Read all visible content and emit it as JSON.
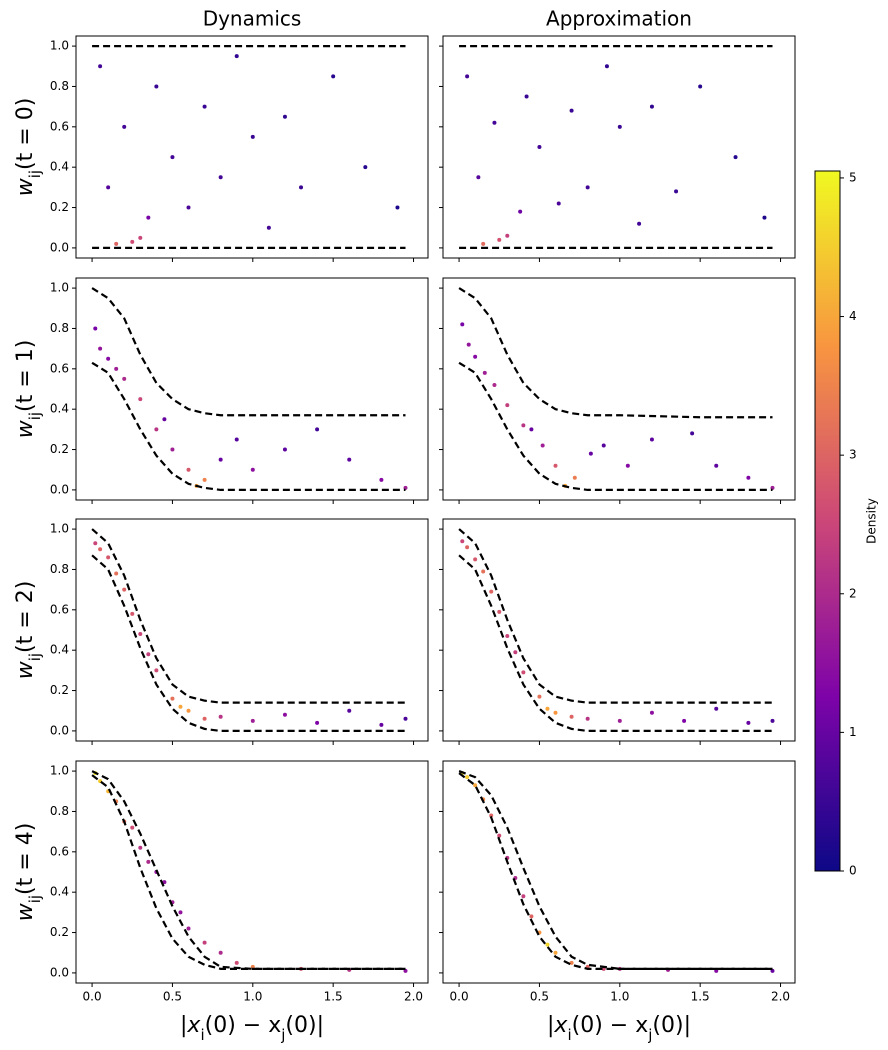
{
  "chart_data": {
    "type": "scatter",
    "columns": [
      "Dynamics",
      "Approximation"
    ],
    "rows": [
      [
        "w",
        "ij",
        "(t = 0)"
      ],
      [
        "w",
        "ij",
        "(t = 1)"
      ],
      [
        "w",
        "ij",
        "(t = 2)"
      ],
      [
        "w",
        "ij",
        "(t = 4)"
      ]
    ],
    "xlabel": [
      "|x",
      "i",
      "(0) − x",
      "j",
      "(0)|"
    ],
    "xlim": [
      -0.1,
      2.09
    ],
    "ylim": [
      -0.05,
      1.05
    ],
    "xticks": [
      {
        "value": 0,
        "label": "0.0"
      },
      {
        "value": 0.5,
        "label": "0.5"
      },
      {
        "value": 1,
        "label": "1.0"
      },
      {
        "value": 1.5,
        "label": "1.5"
      },
      {
        "value": 2,
        "label": "2.0"
      }
    ],
    "yticks": [
      {
        "value": 0,
        "label": "0.0"
      },
      {
        "value": 0.2,
        "label": "0.2"
      },
      {
        "value": 0.4,
        "label": "0.4"
      },
      {
        "value": 0.6,
        "label": "0.6"
      },
      {
        "value": 0.8,
        "label": "0.8"
      },
      {
        "value": 1,
        "label": "1.0"
      }
    ],
    "colormap": "plasma",
    "colorbar": {
      "label": "Density",
      "lim": [
        0,
        5.05
      ],
      "ticks": [
        0,
        1,
        2,
        3,
        4,
        5
      ]
    },
    "curve_x": [
      0,
      0.1,
      0.2,
      0.3,
      0.4,
      0.5,
      0.6,
      0.7,
      0.8,
      1.0,
      1.5,
      1.95
    ],
    "panels": [
      {
        "curves": [
          [
            1,
            1,
            1,
            1,
            1,
            1,
            1,
            1,
            1,
            1,
            1,
            1
          ],
          [
            0,
            0,
            0,
            0,
            0,
            0,
            0,
            0,
            0,
            0,
            0,
            0
          ]
        ],
        "x": [
          0.05,
          0.1,
          0.2,
          0.3,
          0.4,
          0.5,
          0.6,
          0.7,
          0.8,
          0.9,
          1.0,
          1.1,
          1.2,
          1.3,
          1.5,
          1.7,
          1.9,
          0.15,
          0.25,
          0.35
        ],
        "y": [
          0.9,
          0.3,
          0.6,
          0.05,
          0.8,
          0.45,
          0.2,
          0.7,
          0.35,
          0.95,
          0.55,
          0.1,
          0.65,
          0.3,
          0.85,
          0.4,
          0.2,
          0.02,
          0.03,
          0.15
        ],
        "density": [
          0.6,
          0.8,
          0.6,
          2.5,
          0.5,
          0.6,
          0.7,
          0.5,
          0.6,
          0.4,
          0.5,
          0.6,
          0.4,
          0.5,
          0.3,
          0.3,
          0.2,
          3.0,
          2.6,
          1.2
        ]
      },
      {
        "curves": [
          [
            1,
            1,
            1,
            1,
            1,
            1,
            1,
            1,
            1,
            1,
            1,
            1
          ],
          [
            0,
            0,
            0,
            0,
            0,
            0,
            0,
            0,
            0,
            0,
            0,
            0
          ]
        ],
        "x": [
          0.05,
          0.12,
          0.22,
          0.3,
          0.42,
          0.5,
          0.62,
          0.7,
          0.8,
          0.92,
          1.0,
          1.12,
          1.2,
          1.35,
          1.5,
          1.72,
          1.9,
          0.15,
          0.25,
          0.38
        ],
        "y": [
          0.85,
          0.35,
          0.62,
          0.06,
          0.75,
          0.5,
          0.22,
          0.68,
          0.3,
          0.9,
          0.6,
          0.12,
          0.7,
          0.28,
          0.8,
          0.45,
          0.15,
          0.02,
          0.04,
          0.18
        ],
        "density": [
          0.6,
          0.8,
          0.6,
          2.4,
          0.5,
          0.6,
          0.7,
          0.5,
          0.6,
          0.4,
          0.5,
          0.6,
          0.4,
          0.5,
          0.3,
          0.3,
          0.2,
          3.1,
          2.7,
          1.1
        ]
      },
      {
        "curves": [
          [
            1,
            0.95,
            0.85,
            0.67,
            0.53,
            0.45,
            0.4,
            0.38,
            0.37,
            0.37,
            0.37,
            0.37
          ],
          [
            0.63,
            0.58,
            0.45,
            0.3,
            0.17,
            0.08,
            0.03,
            0.01,
            0,
            0,
            0,
            0
          ]
        ],
        "x": [
          0.02,
          0.05,
          0.1,
          0.15,
          0.2,
          0.3,
          0.4,
          0.5,
          0.6,
          0.7,
          0.8,
          0.9,
          1.0,
          1.2,
          1.4,
          1.6,
          1.8,
          1.95,
          0.45,
          0.65
        ],
        "y": [
          0.8,
          0.7,
          0.65,
          0.6,
          0.55,
          0.45,
          0.3,
          0.2,
          0.1,
          0.05,
          0.15,
          0.25,
          0.1,
          0.2,
          0.3,
          0.15,
          0.05,
          0.01,
          0.35,
          0.02
        ],
        "density": [
          1.2,
          1.6,
          1.4,
          1.8,
          2,
          2.5,
          2.2,
          1.8,
          2.8,
          3.5,
          1.0,
          0.8,
          1.5,
          0.9,
          0.6,
          0.9,
          1.4,
          1.8,
          1.0,
          4.0
        ]
      },
      {
        "curves": [
          [
            1,
            0.95,
            0.85,
            0.67,
            0.53,
            0.45,
            0.4,
            0.38,
            0.37,
            0.37,
            0.36,
            0.36
          ],
          [
            0.63,
            0.58,
            0.45,
            0.3,
            0.17,
            0.08,
            0.03,
            0.01,
            0,
            0,
            0,
            0
          ]
        ],
        "x": [
          0.02,
          0.06,
          0.1,
          0.16,
          0.22,
          0.3,
          0.4,
          0.52,
          0.6,
          0.72,
          0.82,
          0.9,
          1.05,
          1.2,
          1.45,
          1.6,
          1.8,
          1.95,
          0.45,
          0.66
        ],
        "y": [
          0.82,
          0.72,
          0.66,
          0.58,
          0.52,
          0.42,
          0.32,
          0.22,
          0.12,
          0.06,
          0.18,
          0.22,
          0.12,
          0.25,
          0.28,
          0.12,
          0.06,
          0.01,
          0.3,
          0.02
        ],
        "density": [
          1.2,
          1.6,
          1.4,
          1.8,
          2,
          2.4,
          2.2,
          1.8,
          2.8,
          3.4,
          1.0,
          0.8,
          1.4,
          0.9,
          0.6,
          0.9,
          1.3,
          1.8,
          1.0,
          4.0
        ]
      },
      {
        "curves": [
          [
            1,
            0.93,
            0.77,
            0.55,
            0.36,
            0.23,
            0.17,
            0.15,
            0.14,
            0.14,
            0.14,
            0.14
          ],
          [
            0.87,
            0.8,
            0.62,
            0.41,
            0.23,
            0.11,
            0.04,
            0.01,
            0,
            0,
            0,
            0
          ]
        ],
        "x": [
          0.02,
          0.05,
          0.1,
          0.15,
          0.2,
          0.25,
          0.3,
          0.35,
          0.4,
          0.5,
          0.6,
          0.7,
          0.8,
          1.0,
          1.2,
          1.4,
          1.6,
          1.8,
          1.95,
          0.55
        ],
        "y": [
          0.93,
          0.9,
          0.86,
          0.78,
          0.7,
          0.58,
          0.48,
          0.38,
          0.3,
          0.16,
          0.1,
          0.06,
          0.07,
          0.05,
          0.08,
          0.04,
          0.1,
          0.03,
          0.06,
          0.12
        ],
        "density": [
          2.5,
          3,
          2.8,
          3.2,
          3.0,
          2.8,
          2.5,
          2.4,
          2.6,
          3.2,
          3.8,
          3.0,
          2.2,
          1.8,
          1.5,
          1.3,
          0.8,
          1.0,
          0.7,
          4.0
        ]
      },
      {
        "curves": [
          [
            1,
            0.93,
            0.77,
            0.55,
            0.36,
            0.23,
            0.17,
            0.15,
            0.14,
            0.14,
            0.14,
            0.14
          ],
          [
            0.87,
            0.8,
            0.62,
            0.41,
            0.23,
            0.11,
            0.04,
            0.01,
            0,
            0,
            0,
            0
          ]
        ],
        "x": [
          0.02,
          0.05,
          0.1,
          0.15,
          0.2,
          0.25,
          0.3,
          0.35,
          0.4,
          0.5,
          0.6,
          0.7,
          0.8,
          1.0,
          1.2,
          1.4,
          1.6,
          1.8,
          1.95,
          0.55
        ],
        "y": [
          0.94,
          0.91,
          0.85,
          0.79,
          0.69,
          0.59,
          0.47,
          0.39,
          0.29,
          0.17,
          0.09,
          0.07,
          0.06,
          0.05,
          0.09,
          0.05,
          0.11,
          0.04,
          0.05,
          0.11
        ],
        "density": [
          2.5,
          3,
          2.8,
          3.2,
          3.0,
          2.8,
          2.5,
          2.4,
          2.6,
          3.2,
          3.8,
          3.0,
          2.2,
          1.8,
          1.5,
          1.3,
          0.8,
          1.0,
          0.7,
          4.0
        ]
      },
      {
        "curves": [
          [
            1,
            0.96,
            0.85,
            0.69,
            0.51,
            0.33,
            0.18,
            0.08,
            0.03,
            0.02,
            0.02,
            0.02
          ],
          [
            0.98,
            0.92,
            0.75,
            0.52,
            0.32,
            0.17,
            0.08,
            0.04,
            0.02,
            0.02,
            0.02,
            0.02
          ]
        ],
        "x": [
          0.02,
          0.05,
          0.1,
          0.15,
          0.2,
          0.25,
          0.3,
          0.35,
          0.4,
          0.45,
          0.5,
          0.55,
          0.6,
          0.7,
          0.8,
          0.9,
          1.0,
          1.3,
          1.6,
          1.95
        ],
        "y": [
          0.99,
          0.95,
          0.9,
          0.85,
          0.75,
          0.72,
          0.62,
          0.55,
          0.5,
          0.45,
          0.35,
          0.3,
          0.22,
          0.15,
          0.1,
          0.05,
          0.03,
          0.02,
          0.015,
          0.01
        ],
        "density": [
          4.8,
          4.5,
          4.2,
          3.5,
          3.2,
          2.6,
          2.2,
          2.0,
          1.6,
          1.5,
          1.8,
          1.6,
          1.8,
          2.4,
          2.0,
          2.6,
          3.5,
          2.8,
          2.2,
          1.5
        ]
      },
      {
        "curves": [
          [
            1,
            0.97,
            0.88,
            0.72,
            0.52,
            0.33,
            0.18,
            0.08,
            0.04,
            0.02,
            0.02,
            0.02
          ],
          [
            0.99,
            0.93,
            0.77,
            0.55,
            0.34,
            0.18,
            0.08,
            0.04,
            0.02,
            0.02,
            0.02,
            0.02
          ]
        ],
        "x": [
          0.02,
          0.05,
          0.1,
          0.15,
          0.2,
          0.25,
          0.3,
          0.35,
          0.4,
          0.45,
          0.5,
          0.55,
          0.6,
          0.7,
          0.8,
          0.9,
          1.0,
          1.3,
          1.6,
          1.95
        ],
        "y": [
          0.99,
          0.97,
          0.93,
          0.86,
          0.78,
          0.68,
          0.57,
          0.47,
          0.38,
          0.28,
          0.2,
          0.14,
          0.1,
          0.05,
          0.03,
          0.02,
          0.02,
          0.015,
          0.01,
          0.01
        ],
        "density": [
          4.8,
          4.5,
          4.0,
          3.6,
          3.0,
          2.6,
          2.2,
          2.0,
          2.4,
          3.0,
          3.8,
          4.6,
          4.0,
          3.5,
          3.0,
          2.6,
          2.2,
          1.8,
          1.4,
          1.0
        ]
      }
    ]
  }
}
